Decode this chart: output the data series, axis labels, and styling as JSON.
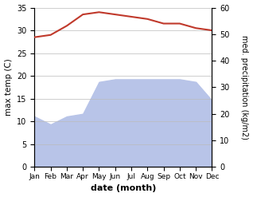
{
  "months": [
    "Jan",
    "Feb",
    "Mar",
    "Apr",
    "May",
    "Jun",
    "Jul",
    "Aug",
    "Sep",
    "Oct",
    "Nov",
    "Dec"
  ],
  "temp": [
    28.5,
    29.0,
    31.0,
    33.5,
    34.0,
    33.5,
    33.0,
    32.5,
    31.5,
    31.5,
    30.5,
    30.0
  ],
  "precip": [
    19,
    16,
    19,
    20,
    32,
    33,
    33,
    33,
    33,
    33,
    32,
    25
  ],
  "temp_color": "#c0392b",
  "precip_fill": "#b8c4e8",
  "temp_ylim": [
    0,
    35
  ],
  "precip_ylim": [
    0,
    60
  ],
  "temp_yticks": [
    0,
    5,
    10,
    15,
    20,
    25,
    30,
    35
  ],
  "precip_yticks": [
    0,
    10,
    20,
    30,
    40,
    50,
    60
  ],
  "xlabel": "date (month)",
  "ylabel_left": "max temp (C)",
  "ylabel_right": "med. precipitation (kg/m2)",
  "bg_color": "#ffffff",
  "grid_color": "#bbbbbb"
}
